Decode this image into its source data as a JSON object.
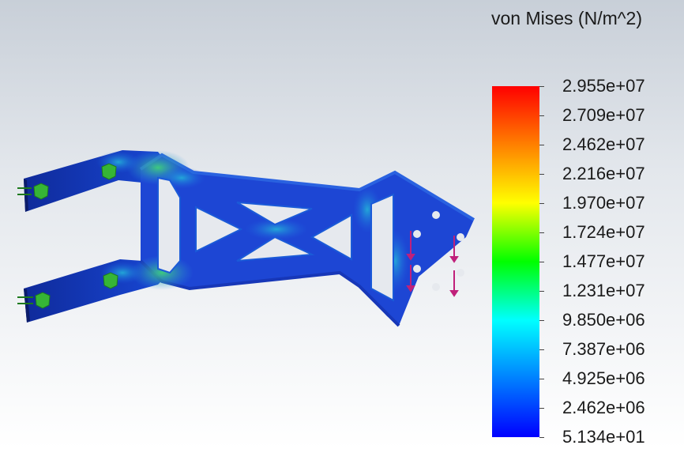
{
  "legend": {
    "title": "von Mises (N/m^2)",
    "ticks": [
      "2.955e+07",
      "2.709e+07",
      "2.462e+07",
      "2.216e+07",
      "1.970e+07",
      "1.724e+07",
      "1.477e+07",
      "1.231e+07",
      "9.850e+06",
      "7.387e+06",
      "4.925e+06",
      "2.462e+06",
      "5.134e+01"
    ],
    "colors": [
      "#ff0000",
      "#ff8000",
      "#ffff00",
      "#00ff00",
      "#00ffff",
      "#0080ff",
      "#0000ff"
    ]
  },
  "model": {
    "colors": {
      "plate_base": "#1a3fd0",
      "plate_edge_dark": "#142a8a",
      "stress_hotspot": "#2ec07a",
      "fixture_marker": "#2fb52f",
      "load_arrow": "#c0207a"
    }
  }
}
